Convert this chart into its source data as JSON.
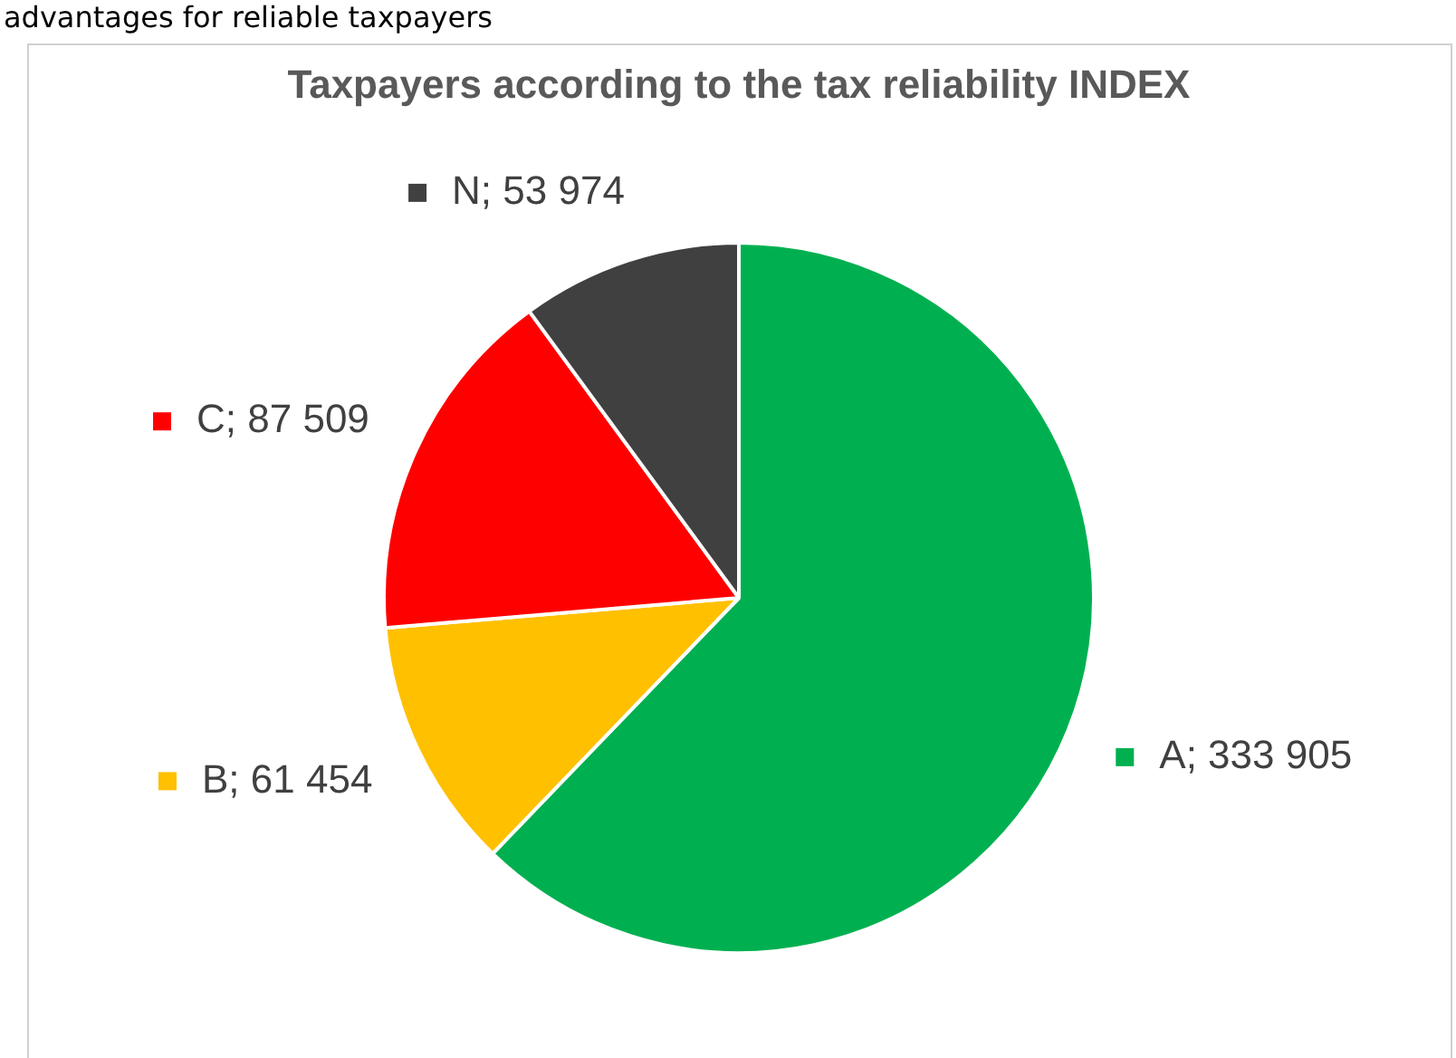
{
  "chart_data": {
    "type": "pie",
    "title": "Taxpayers according to the tax reliability INDEX",
    "annotations": [
      "advantages for reliable taxpayers"
    ],
    "categories": [
      "A",
      "B",
      "C",
      "N"
    ],
    "values": [
      333905,
      61454,
      87509,
      53974
    ],
    "value_labels": [
      "333 905",
      "61 454",
      "87 509",
      "53 974"
    ],
    "colors": [
      "#00b050",
      "#ffc000",
      "#ff0000",
      "#404040"
    ],
    "legend": true
  }
}
